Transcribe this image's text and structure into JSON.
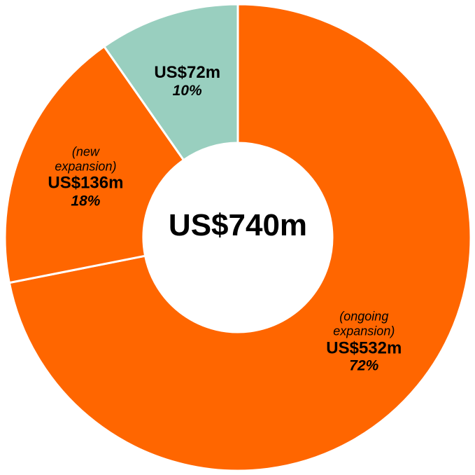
{
  "chart_data": {
    "type": "donut",
    "center_label": "US$740m",
    "categories": [
      "(ongoing expansion)",
      "(new expansion)",
      null
    ],
    "values": [
      532,
      136,
      72
    ],
    "value_labels": [
      "US$532m",
      "US$136m",
      "US$72m"
    ],
    "shares": [
      72,
      18,
      10
    ],
    "share_labels": [
      "72%",
      "18%",
      "10%"
    ],
    "colors": [
      "#ff6600",
      "#ff6600",
      "#99cfbf"
    ]
  }
}
